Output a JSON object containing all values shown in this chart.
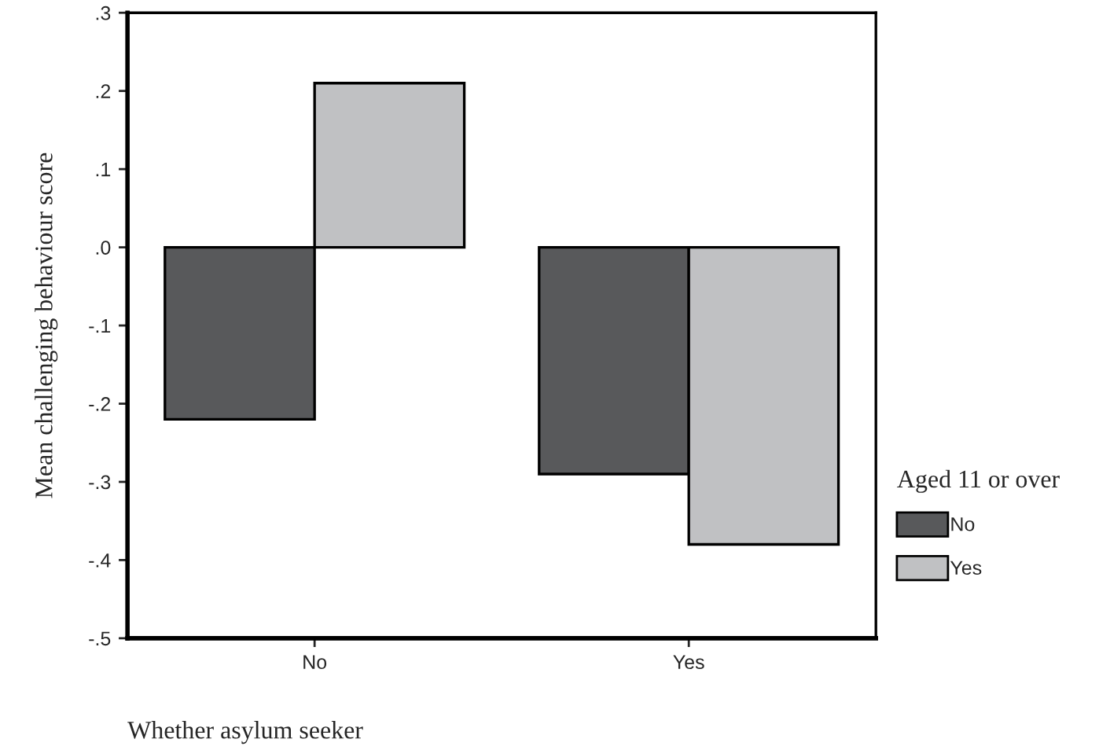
{
  "chart_data": {
    "type": "bar",
    "xlabel": "Whether asylum seeker",
    "ylabel": "Mean challenging behaviour score",
    "legend_title": "Aged 11 or over",
    "categories": [
      "No",
      "Yes"
    ],
    "series": [
      {
        "name": "No",
        "color": "#58595b",
        "values": [
          -0.22,
          -0.29
        ]
      },
      {
        "name": "Yes",
        "color": "#c0c1c3",
        "values": [
          0.21,
          -0.38
        ]
      }
    ],
    "ylim": [
      -0.5,
      0.3
    ],
    "yticks": [
      {
        "value": -0.5,
        "label": "-.5"
      },
      {
        "value": -0.4,
        "label": "-.4"
      },
      {
        "value": -0.3,
        "label": "-.3"
      },
      {
        "value": -0.2,
        "label": "-.2"
      },
      {
        "value": -0.1,
        "label": "-.1"
      },
      {
        "value": 0.0,
        "label": ".0"
      },
      {
        "value": 0.1,
        "label": ".1"
      },
      {
        "value": 0.2,
        "label": ".2"
      },
      {
        "value": 0.3,
        "label": ".3"
      }
    ],
    "grid": false,
    "legend": "right"
  }
}
